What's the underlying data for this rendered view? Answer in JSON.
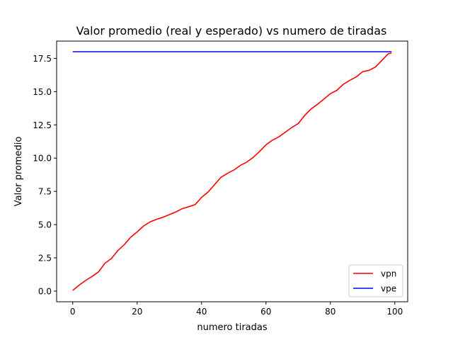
{
  "chart_data": {
    "type": "line",
    "title": "Valor promedio (real y esperado) vs numero de tiradas",
    "xlabel": "numero tiradas",
    "ylabel": "Valor promedio",
    "xlim": [
      -5,
      104
    ],
    "ylim": [
      -0.8,
      18.8
    ],
    "x_ticks": [
      0,
      20,
      40,
      60,
      80,
      100
    ],
    "x_tick_labels": [
      "0",
      "20",
      "40",
      "60",
      "80",
      "100"
    ],
    "y_ticks": [
      0,
      2.5,
      5,
      7.5,
      10,
      12.5,
      15,
      17.5
    ],
    "y_tick_labels": [
      "0.0",
      "2.5",
      "5.0",
      "7.5",
      "10.0",
      "12.5",
      "15.0",
      "17.5"
    ],
    "grid": false,
    "legend_position": "lower-right",
    "series": [
      {
        "name": "vpn",
        "color": "#ff0000",
        "x": [
          0,
          2,
          4,
          6,
          8,
          10,
          12,
          14,
          16,
          18,
          20,
          22,
          24,
          26,
          28,
          30,
          32,
          34,
          36,
          38,
          40,
          42,
          44,
          46,
          48,
          50,
          52,
          54,
          56,
          58,
          60,
          62,
          64,
          66,
          68,
          70,
          72,
          74,
          76,
          78,
          80,
          82,
          84,
          86,
          88,
          90,
          92,
          94,
          96,
          98,
          99
        ],
        "y": [
          0.05,
          0.45,
          0.8,
          1.1,
          1.45,
          2.1,
          2.45,
          3.05,
          3.5,
          4.05,
          4.45,
          4.9,
          5.2,
          5.4,
          5.55,
          5.75,
          5.95,
          6.2,
          6.35,
          6.5,
          7.05,
          7.45,
          8.0,
          8.55,
          8.85,
          9.1,
          9.45,
          9.7,
          10.05,
          10.5,
          11.0,
          11.35,
          11.6,
          11.95,
          12.3,
          12.6,
          13.2,
          13.7,
          14.05,
          14.45,
          14.85,
          15.1,
          15.55,
          15.85,
          16.1,
          16.5,
          16.6,
          16.85,
          17.35,
          17.85,
          17.9
        ]
      },
      {
        "name": "vpe",
        "color": "#0000ff",
        "x": [
          0,
          99
        ],
        "y": [
          18,
          18
        ]
      }
    ]
  }
}
